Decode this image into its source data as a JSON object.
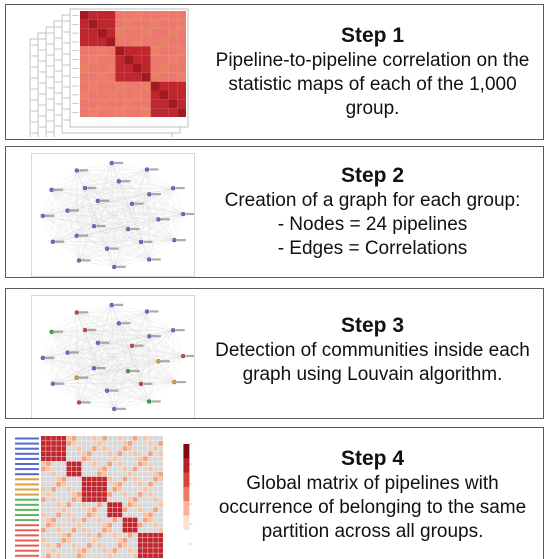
{
  "steps": [
    {
      "title": "Step 1",
      "lines": [
        "Pipeline-to-pipeline correlation on the",
        "statistic maps of each of the 1,000",
        "group."
      ]
    },
    {
      "title": "Step 2",
      "lines": [
        "Creation of a graph for each group:",
        "- Nodes = 24 pipelines",
        "- Edges = Correlations"
      ]
    },
    {
      "title": "Step 3",
      "lines": [
        "Detection of communities inside each",
        "graph using Louvain algorithm."
      ]
    },
    {
      "title": "Step 4",
      "lines": [
        "Global matrix of pipelines with",
        "occurrence of belonging to the same",
        "partition across all groups."
      ]
    }
  ],
  "colors": {
    "matrix_dark": "#c0262d",
    "matrix_mid": "#e2623f",
    "matrix_light": "#f7c4a8",
    "node_blue": "#6a6cd6",
    "node_green": "#3fa54a",
    "node_orange": "#e0a12a",
    "node_red": "#d9443a"
  }
}
